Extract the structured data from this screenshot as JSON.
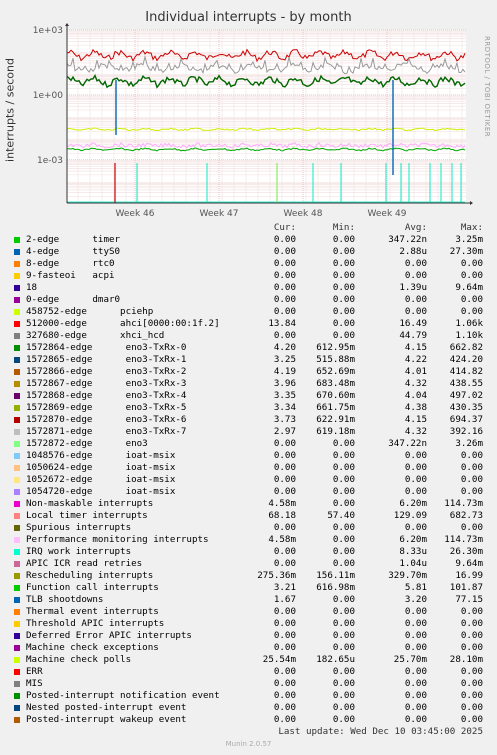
{
  "title": "Individual interrupts - by month",
  "side_label": "RRDTOOL / TOBI OETIKER",
  "footer": "Munin 2.0.57",
  "last_update": "Last update:  Wed Dec 10 03:45:00 2025",
  "legend_headers": {
    "cur": "Cur:",
    "min": "Min:",
    "avg": "Avg:",
    "max": "Max:"
  },
  "chart_data": {
    "type": "line",
    "ylabel": "interrupts / second",
    "y_scale": "log",
    "ylim": [
      1e-05,
      1000
    ],
    "y_ticks": [
      "1e+03",
      "1e+00",
      "1e-03"
    ],
    "x_ticks": [
      "Week 46",
      "Week 47",
      "Week 48",
      "Week 49"
    ],
    "grid": true,
    "series": [
      {
        "name": "Local timer interrupts",
        "color": "#cc0000",
        "level": 68.18
      },
      {
        "name": "Rescheduling interrupts",
        "color": "#999999",
        "level": 16.99
      },
      {
        "name": "1572864-edge eno3-TxRx-0..7",
        "color": "#006600",
        "level": 4.2
      },
      {
        "name": "2-edge timer",
        "color": "#00aa00",
        "level": 0.003
      },
      {
        "name": "Performance monitoring interrupts",
        "color": "#ffaaff",
        "level": 0.0046
      },
      {
        "name": "Machine check polls",
        "color": "#ccee00",
        "level": 0.0255
      },
      {
        "name": "IRQ work interrupts",
        "color": "#33eecc",
        "level": 1e-05
      }
    ]
  },
  "legend": [
    {
      "color": "#00cc00",
      "name": "2-edge      timer",
      "cur": "0.00",
      "min": "0.00",
      "avg": "347.22n",
      "max": "3.25m"
    },
    {
      "color": "#0066b3",
      "name": "4-edge      ttyS0",
      "cur": "0.00",
      "min": "0.00",
      "avg": "2.88u",
      "max": "27.30m"
    },
    {
      "color": "#ff8000",
      "name": "8-edge      rtc0",
      "cur": "0.00",
      "min": "0.00",
      "avg": "0.00",
      "max": "0.00"
    },
    {
      "color": "#ffcc00",
      "name": "9-fasteoi   acpi",
      "cur": "0.00",
      "min": "0.00",
      "avg": "0.00",
      "max": "0.00"
    },
    {
      "color": "#330099",
      "name": "18",
      "cur": "0.00",
      "min": "0.00",
      "avg": "1.39u",
      "max": "9.64m"
    },
    {
      "color": "#990099",
      "name": "0-edge      dmar0",
      "cur": "0.00",
      "min": "0.00",
      "avg": "0.00",
      "max": "0.00"
    },
    {
      "color": "#ccff00",
      "name": "458752-edge      pciehp",
      "cur": "0.00",
      "min": "0.00",
      "avg": "0.00",
      "max": "0.00"
    },
    {
      "color": "#ff0000",
      "name": "512000-edge      ahci[0000:00:1f.2]",
      "cur": "13.84",
      "min": "0.00",
      "avg": "16.49",
      "max": "1.06k"
    },
    {
      "color": "#808080",
      "name": "327680-edge      xhci_hcd",
      "cur": "0.00",
      "min": "0.00",
      "avg": "44.79",
      "max": "1.10k"
    },
    {
      "color": "#008f00",
      "name": "1572864-edge      eno3-TxRx-0",
      "cur": "4.20",
      "min": "612.95m",
      "avg": "4.15",
      "max": "662.82"
    },
    {
      "color": "#00487d",
      "name": "1572865-edge      eno3-TxRx-1",
      "cur": "3.25",
      "min": "515.88m",
      "avg": "4.22",
      "max": "424.20"
    },
    {
      "color": "#b35a00",
      "name": "1572866-edge      eno3-TxRx-2",
      "cur": "4.19",
      "min": "652.69m",
      "avg": "4.01",
      "max": "414.82"
    },
    {
      "color": "#b38f00",
      "name": "1572867-edge      eno3-TxRx-3",
      "cur": "3.96",
      "min": "683.48m",
      "avg": "4.32",
      "max": "438.55"
    },
    {
      "color": "#6b006b",
      "name": "1572868-edge      eno3-TxRx-4",
      "cur": "3.35",
      "min": "670.60m",
      "avg": "4.04",
      "max": "497.02"
    },
    {
      "color": "#8fb300",
      "name": "1572869-edge      eno3-TxRx-5",
      "cur": "3.34",
      "min": "661.75m",
      "avg": "4.38",
      "max": "430.35"
    },
    {
      "color": "#b30000",
      "name": "1572870-edge      eno3-TxRx-6",
      "cur": "3.73",
      "min": "622.91m",
      "avg": "4.15",
      "max": "694.37"
    },
    {
      "color": "#bebebe",
      "name": "1572871-edge      eno3-TxRx-7",
      "cur": "2.97",
      "min": "619.18m",
      "avg": "4.32",
      "max": "392.16"
    },
    {
      "color": "#80ff80",
      "name": "1572872-edge      eno3",
      "cur": "0.00",
      "min": "0.00",
      "avg": "347.22n",
      "max": "3.26m"
    },
    {
      "color": "#80c9ff",
      "name": "1048576-edge      ioat-msix",
      "cur": "0.00",
      "min": "0.00",
      "avg": "0.00",
      "max": "0.00"
    },
    {
      "color": "#ffc080",
      "name": "1050624-edge      ioat-msix",
      "cur": "0.00",
      "min": "0.00",
      "avg": "0.00",
      "max": "0.00"
    },
    {
      "color": "#ffe680",
      "name": "1052672-edge      ioat-msix",
      "cur": "0.00",
      "min": "0.00",
      "avg": "0.00",
      "max": "0.00"
    },
    {
      "color": "#aa80ff",
      "name": "1054720-edge      ioat-msix",
      "cur": "0.00",
      "min": "0.00",
      "avg": "0.00",
      "max": "0.00"
    },
    {
      "color": "#ee00cc",
      "name": "Non-maskable interrupts",
      "cur": "4.58m",
      "min": "0.00",
      "avg": "6.20m",
      "max": "114.73m"
    },
    {
      "color": "#ff8080",
      "name": "Local timer interrupts",
      "cur": "68.18",
      "min": "57.40",
      "avg": "129.09",
      "max": "682.73"
    },
    {
      "color": "#666600",
      "name": "Spurious interrupts",
      "cur": "0.00",
      "min": "0.00",
      "avg": "0.00",
      "max": "0.00"
    },
    {
      "color": "#ffbfff",
      "name": "Performance monitoring interrupts",
      "cur": "4.58m",
      "min": "0.00",
      "avg": "6.20m",
      "max": "114.73m"
    },
    {
      "color": "#00ffcc",
      "name": "IRQ work interrupts",
      "cur": "0.00",
      "min": "0.00",
      "avg": "8.33u",
      "max": "26.30m"
    },
    {
      "color": "#cc6699",
      "name": "APIC ICR read retries",
      "cur": "0.00",
      "min": "0.00",
      "avg": "1.04u",
      "max": "9.64m"
    },
    {
      "color": "#999900",
      "name": "Rescheduling interrupts",
      "cur": "275.36m",
      "min": "156.11m",
      "avg": "329.70m",
      "max": "16.99"
    },
    {
      "color": "#00cc00",
      "name": "Function call interrupts",
      "cur": "3.21",
      "min": "616.98m",
      "avg": "5.81",
      "max": "101.87"
    },
    {
      "color": "#0066b3",
      "name": "TLB shootdowns",
      "cur": "1.67",
      "min": "0.00",
      "avg": "3.20",
      "max": "77.15"
    },
    {
      "color": "#ff8000",
      "name": "Thermal event interrupts",
      "cur": "0.00",
      "min": "0.00",
      "avg": "0.00",
      "max": "0.00"
    },
    {
      "color": "#ffcc00",
      "name": "Threshold APIC interrupts",
      "cur": "0.00",
      "min": "0.00",
      "avg": "0.00",
      "max": "0.00"
    },
    {
      "color": "#330099",
      "name": "Deferred Error APIC interrupts",
      "cur": "0.00",
      "min": "0.00",
      "avg": "0.00",
      "max": "0.00"
    },
    {
      "color": "#990099",
      "name": "Machine check exceptions",
      "cur": "0.00",
      "min": "0.00",
      "avg": "0.00",
      "max": "0.00"
    },
    {
      "color": "#ccff00",
      "name": "Machine check polls",
      "cur": "25.54m",
      "min": "182.65u",
      "avg": "25.70m",
      "max": "28.10m"
    },
    {
      "color": "#ff0000",
      "name": "ERR",
      "cur": "0.00",
      "min": "0.00",
      "avg": "0.00",
      "max": "0.00"
    },
    {
      "color": "#808080",
      "name": "MIS",
      "cur": "0.00",
      "min": "0.00",
      "avg": "0.00",
      "max": "0.00"
    },
    {
      "color": "#008f00",
      "name": "Posted-interrupt notification event",
      "cur": "0.00",
      "min": "0.00",
      "avg": "0.00",
      "max": "0.00"
    },
    {
      "color": "#00487d",
      "name": "Nested posted-interrupt event",
      "cur": "0.00",
      "min": "0.00",
      "avg": "0.00",
      "max": "0.00"
    },
    {
      "color": "#b35a00",
      "name": "Posted-interrupt wakeup event",
      "cur": "0.00",
      "min": "0.00",
      "avg": "0.00",
      "max": "0.00"
    }
  ]
}
